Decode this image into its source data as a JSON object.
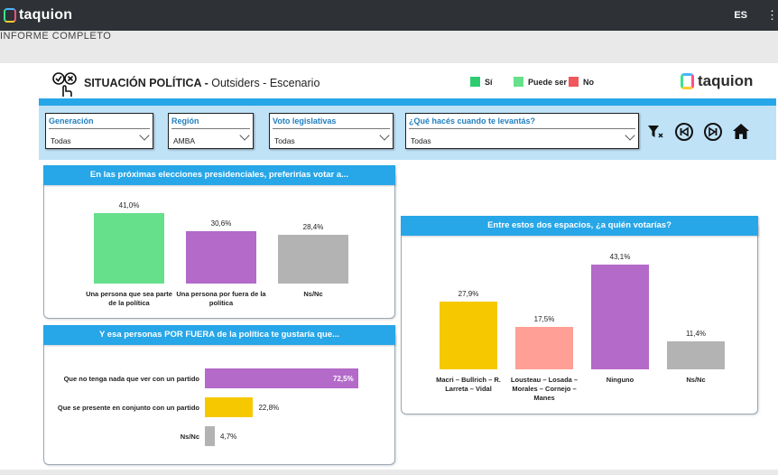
{
  "app": {
    "brand": "taquion",
    "language": "ES",
    "more_glyph": "⋮",
    "report_title": "INFORME COMPLETO"
  },
  "header": {
    "title_bold": "SITUACIÓN POLÍTICA -",
    "title_rest": "Outsiders - Escenario",
    "logo_text": "taquion",
    "legend": [
      {
        "label": "Sí",
        "color": "#2ecc71"
      },
      {
        "label": "Puede ser",
        "color": "#66e08a"
      },
      {
        "label": "No",
        "color": "#f0575d"
      }
    ]
  },
  "filters": [
    {
      "label": "Generación",
      "value": "Todas"
    },
    {
      "label": "Región",
      "value": "AMBA"
    },
    {
      "label": "Voto legislativas",
      "value": "Todas"
    },
    {
      "label": "¿Qué hacés cuando te levantás?",
      "value": "Todas"
    }
  ],
  "toolbar_icons": [
    "clear-filter-icon",
    "previous-icon",
    "next-icon",
    "home-icon"
  ],
  "colors": {
    "accent": "#27a6e8",
    "green": "#66e08a",
    "purple": "#b36ac9",
    "gray": "#b3b3b3",
    "yellow": "#f6c800",
    "salmon": "#ff9f95"
  },
  "chart_data": [
    {
      "type": "bar",
      "title": "En las próximas elecciones presidenciales, preferirías votar a...",
      "categories": [
        "Una persona que sea parte de la política",
        "Una persona por fuera de la política",
        "Ns/Nc"
      ],
      "values": [
        41.0,
        30.6,
        28.4
      ],
      "value_labels": [
        "41,0%",
        "30,6%",
        "28,4%"
      ],
      "colors": [
        "#66e08a",
        "#b36ac9",
        "#b3b3b3"
      ],
      "ylim": [
        0,
        41
      ]
    },
    {
      "type": "bar",
      "orientation": "horizontal",
      "title": "Y esa personas POR FUERA de la política te gustaría que...",
      "categories": [
        "Que no tenga nada que ver con un partido",
        "Que se presente en conjunto con un partido",
        "Ns/Nc"
      ],
      "values": [
        72.5,
        22.8,
        4.7
      ],
      "value_labels": [
        "72,5%",
        "22,8%",
        "4,7%"
      ],
      "colors": [
        "#b36ac9",
        "#f6c800",
        "#b3b3b3"
      ],
      "xlim": [
        0,
        72.5
      ]
    },
    {
      "type": "bar",
      "title": "Entre estos dos espacios, ¿a quién votarías?",
      "categories": [
        "Macri – Bullrich – R. Larreta – Vidal",
        "Lousteau – Losada – Morales – Cornejo – Manes",
        "Ninguno",
        "Ns/Nc"
      ],
      "values": [
        27.9,
        17.5,
        43.1,
        11.4
      ],
      "value_labels": [
        "27,9%",
        "17,5%",
        "43,1%",
        "11,4%"
      ],
      "colors": [
        "#f6c800",
        "#ff9f95",
        "#b36ac9",
        "#b3b3b3"
      ],
      "ylim": [
        0,
        43.1
      ]
    }
  ]
}
